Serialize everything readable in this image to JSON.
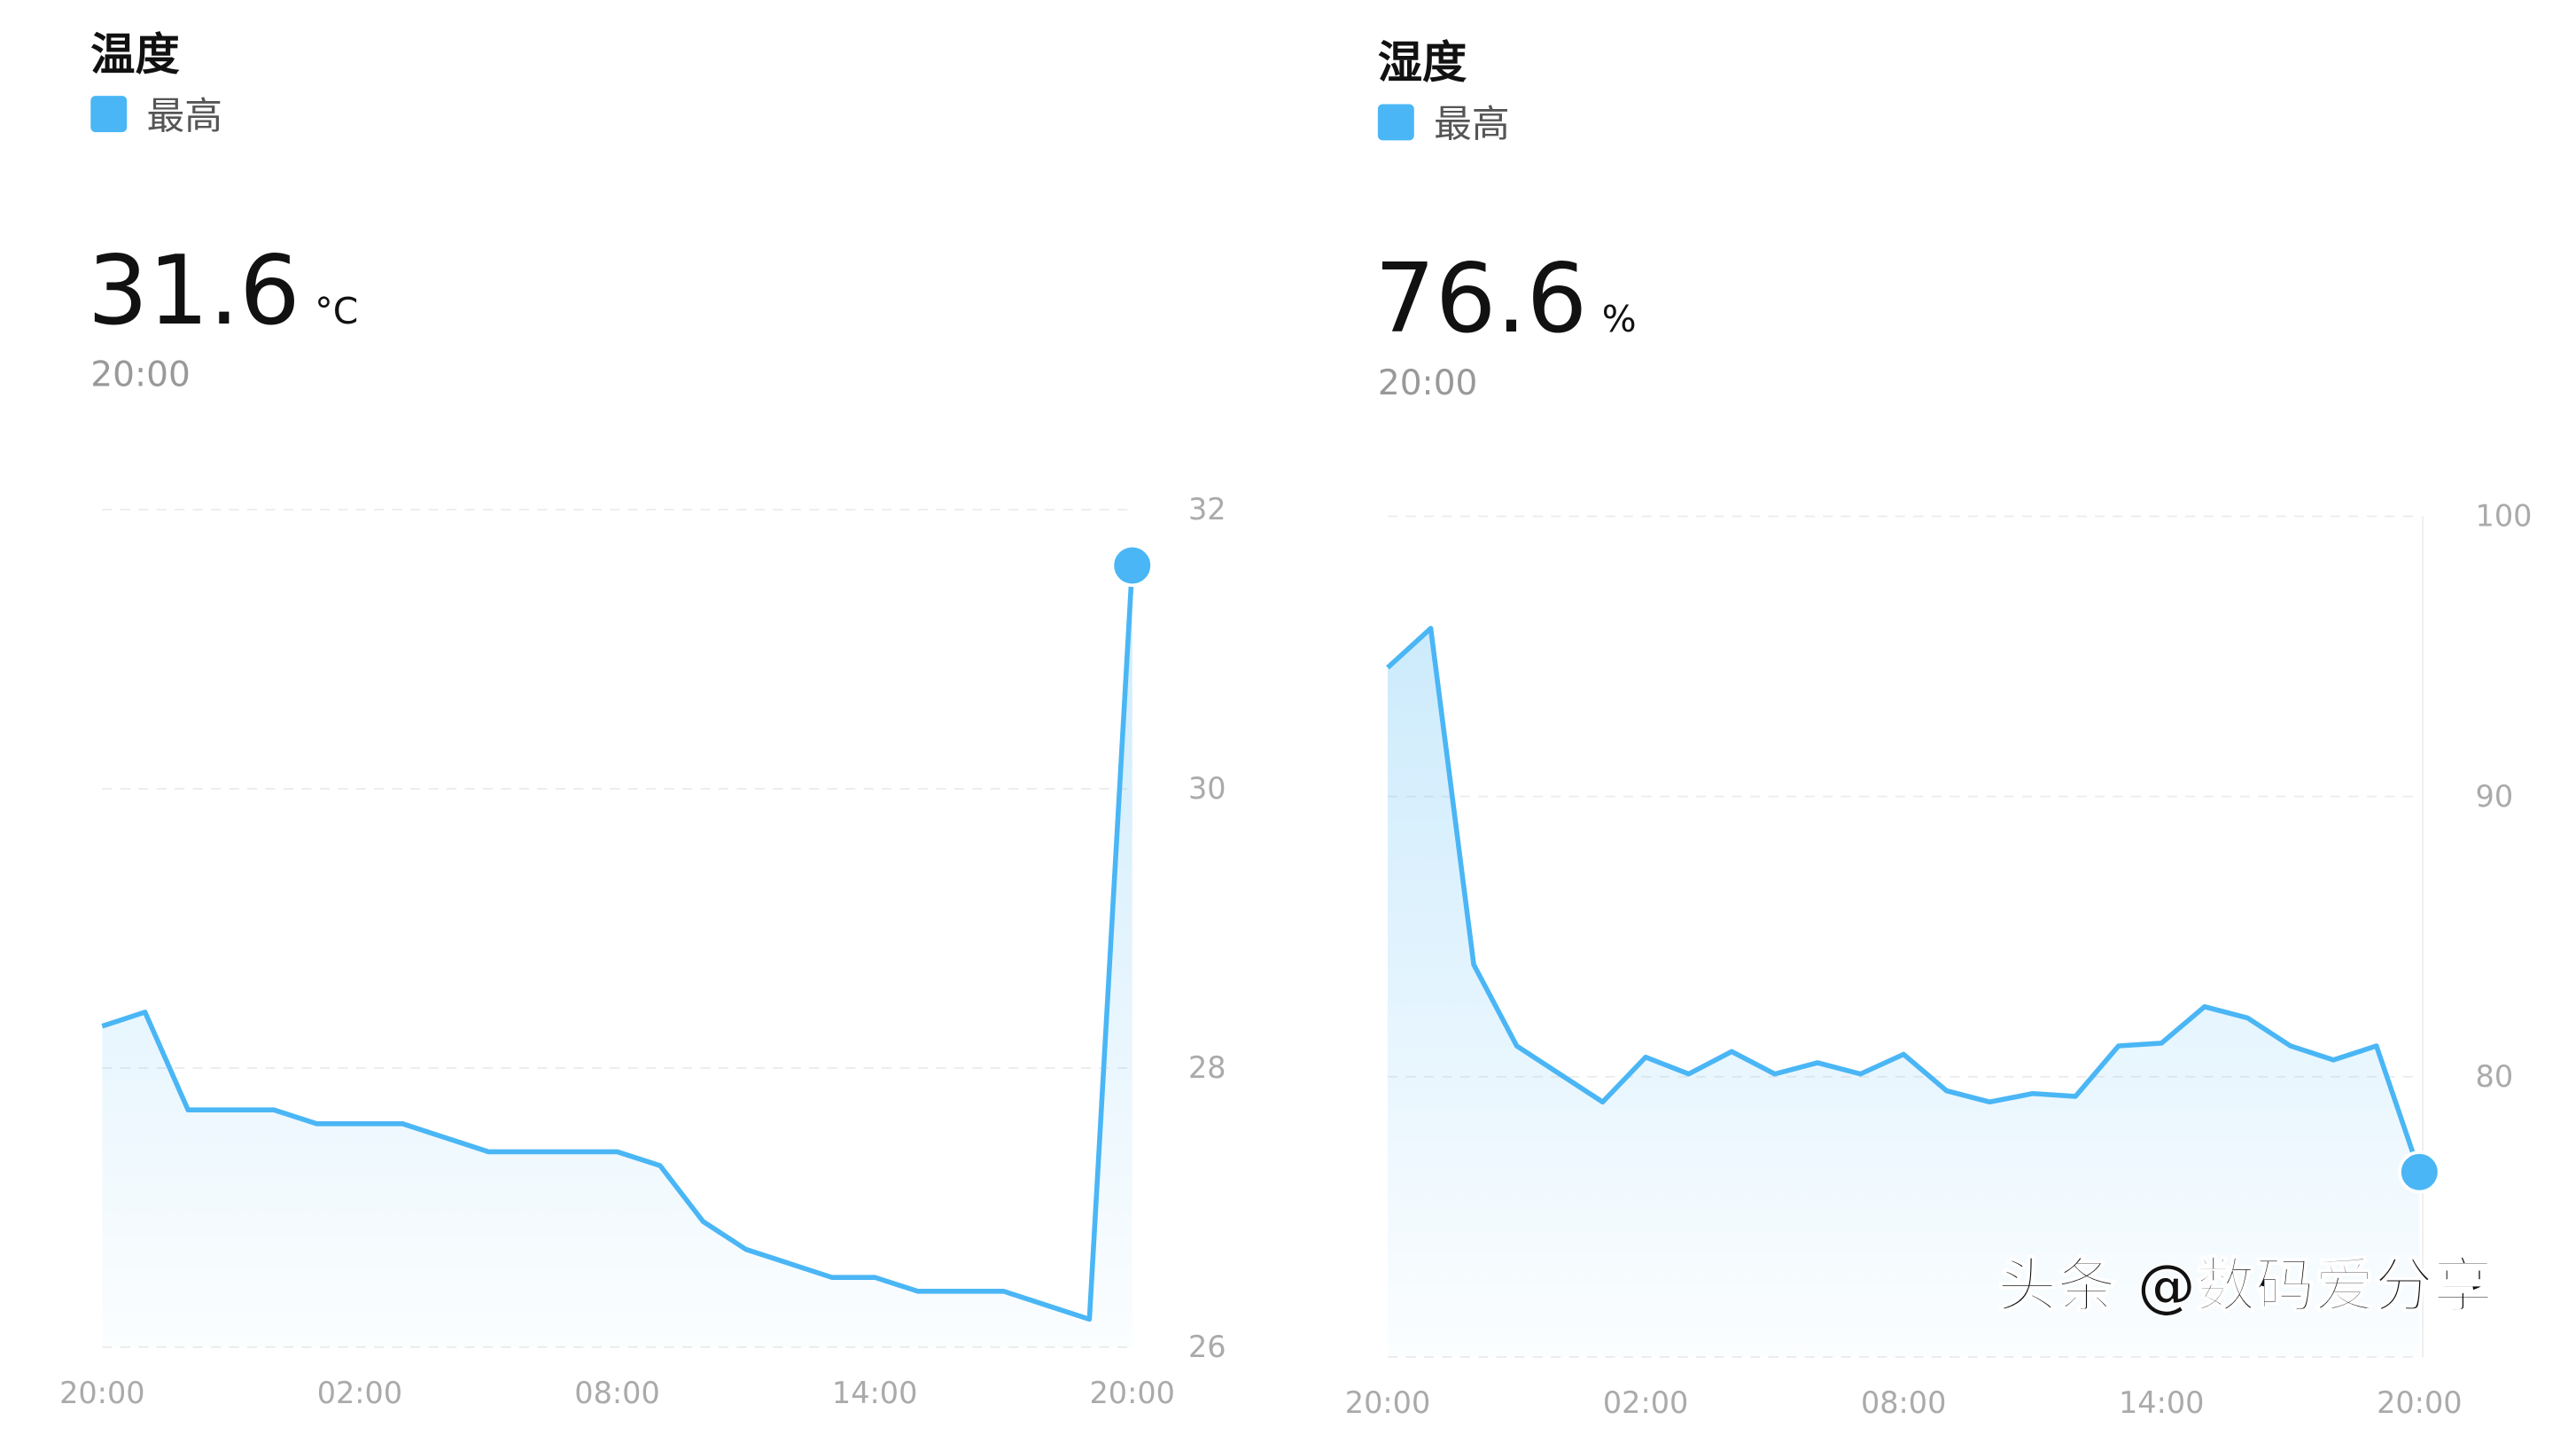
{
  "accent_color": "#4ab6f5",
  "watermark": "头条 @数码爱分享",
  "chart_data": [
    {
      "type": "area",
      "title": "温度",
      "legend": [
        "最高"
      ],
      "current_value": "31.6",
      "unit": "°C",
      "current_time": "20:00",
      "x_ticks": [
        "20:00",
        "02:00",
        "08:00",
        "14:00",
        "20:00"
      ],
      "y_ticks": [
        26,
        28,
        30,
        32
      ],
      "ylim": [
        26,
        32
      ],
      "y_axis_side": "right",
      "grid": true,
      "series": [
        {
          "name": "最高",
          "values": [
            28.3,
            28.4,
            27.7,
            27.7,
            27.7,
            27.6,
            27.6,
            27.6,
            27.5,
            27.4,
            27.4,
            27.4,
            27.4,
            27.3,
            26.9,
            26.7,
            26.6,
            26.5,
            26.5,
            26.4,
            26.4,
            26.4,
            26.3,
            26.2,
            31.6
          ]
        }
      ]
    },
    {
      "type": "area",
      "title": "湿度",
      "legend": [
        "最高"
      ],
      "current_value": "76.6",
      "unit": "%",
      "current_time": "20:00",
      "x_ticks": [
        "20:00",
        "02:00",
        "08:00",
        "14:00",
        "20:00"
      ],
      "y_ticks": [
        80,
        90,
        100
      ],
      "ylim": [
        70,
        100
      ],
      "y_axis_side": "right",
      "grid": true,
      "series": [
        {
          "name": "最高",
          "values": [
            94.6,
            96,
            84,
            81.1,
            80.1,
            79.1,
            80.7,
            80.1,
            80.9,
            80.1,
            80.5,
            80.1,
            80.8,
            79.5,
            79.1,
            79.4,
            79.3,
            81.1,
            81.2,
            82.5,
            82.1,
            81.1,
            80.6,
            81.1,
            76.6
          ]
        }
      ]
    }
  ]
}
